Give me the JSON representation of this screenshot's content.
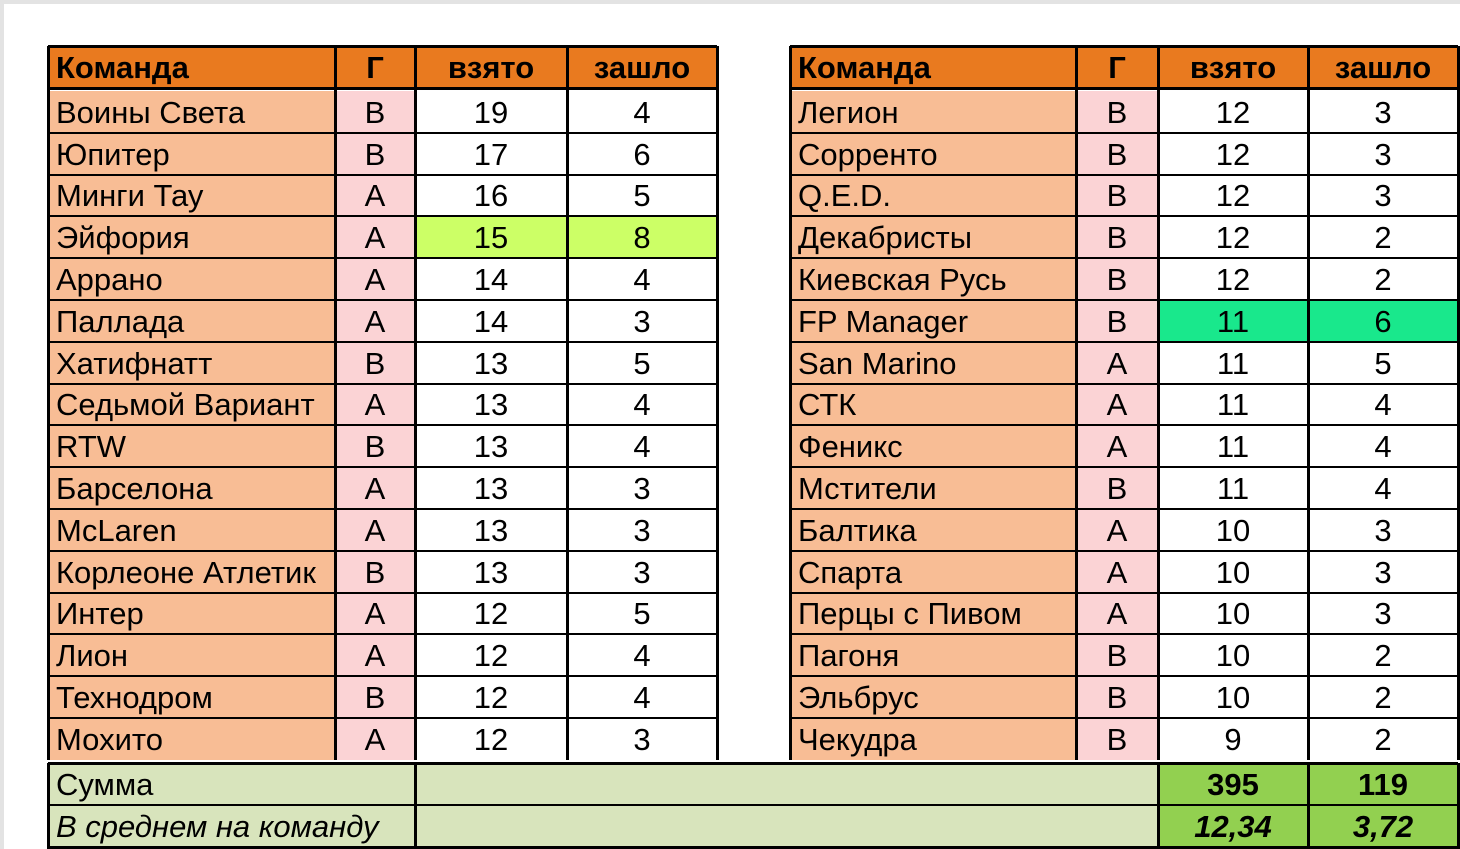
{
  "headers": {
    "team": "Команда",
    "group": "Г",
    "scored": "взято",
    "conceded": "зашло"
  },
  "left_rows": [
    {
      "team": "Воины Света",
      "group": "B",
      "scored": "19",
      "conceded": "4",
      "hl": ""
    },
    {
      "team": "Юпитер",
      "group": "B",
      "scored": "17",
      "conceded": "6",
      "hl": ""
    },
    {
      "team": "Минги Тау",
      "group": "A",
      "scored": "16",
      "conceded": "5",
      "hl": ""
    },
    {
      "team": "Эйфория",
      "group": "A",
      "scored": "15",
      "conceded": "8",
      "hl": "lime"
    },
    {
      "team": "Аррано",
      "group": "A",
      "scored": "14",
      "conceded": "4",
      "hl": ""
    },
    {
      "team": "Паллада",
      "group": "A",
      "scored": "14",
      "conceded": "3",
      "hl": ""
    },
    {
      "team": "Хатифнатт",
      "group": "B",
      "scored": "13",
      "conceded": "5",
      "hl": ""
    },
    {
      "team": "Седьмой Вариант",
      "group": "A",
      "scored": "13",
      "conceded": "4",
      "hl": ""
    },
    {
      "team": "RTW",
      "group": "B",
      "scored": "13",
      "conceded": "4",
      "hl": ""
    },
    {
      "team": "Барселона",
      "group": "A",
      "scored": "13",
      "conceded": "3",
      "hl": ""
    },
    {
      "team": "McLaren",
      "group": "A",
      "scored": "13",
      "conceded": "3",
      "hl": ""
    },
    {
      "team": "Корлеоне Атлетик",
      "group": "B",
      "scored": "13",
      "conceded": "3",
      "hl": ""
    },
    {
      "team": "Интер",
      "group": "A",
      "scored": "12",
      "conceded": "5",
      "hl": ""
    },
    {
      "team": "Лион",
      "group": "A",
      "scored": "12",
      "conceded": "4",
      "hl": ""
    },
    {
      "team": "Технодром",
      "group": "B",
      "scored": "12",
      "conceded": "4",
      "hl": ""
    },
    {
      "team": "Мохито",
      "group": "A",
      "scored": "12",
      "conceded": "3",
      "hl": ""
    }
  ],
  "right_rows": [
    {
      "team": "Легион",
      "group": "B",
      "scored": "12",
      "conceded": "3",
      "hl": ""
    },
    {
      "team": "Сорренто",
      "group": "B",
      "scored": "12",
      "conceded": "3",
      "hl": ""
    },
    {
      "team": "Q.E.D.",
      "group": "B",
      "scored": "12",
      "conceded": "3",
      "hl": ""
    },
    {
      "team": "Декабристы",
      "group": "B",
      "scored": "12",
      "conceded": "2",
      "hl": ""
    },
    {
      "team": "Киевская Русь",
      "group": "B",
      "scored": "12",
      "conceded": "2",
      "hl": ""
    },
    {
      "team": "FP Manager",
      "group": "B",
      "scored": "11",
      "conceded": "6",
      "hl": "green"
    },
    {
      "team": "San Marino",
      "group": "A",
      "scored": "11",
      "conceded": "5",
      "hl": ""
    },
    {
      "team": "СТК",
      "group": "A",
      "scored": "11",
      "conceded": "4",
      "hl": ""
    },
    {
      "team": "Феникс",
      "group": "A",
      "scored": "11",
      "conceded": "4",
      "hl": ""
    },
    {
      "team": "Мстители",
      "group": "B",
      "scored": "11",
      "conceded": "4",
      "hl": ""
    },
    {
      "team": "Балтика",
      "group": "A",
      "scored": "10",
      "conceded": "3",
      "hl": ""
    },
    {
      "team": "Спарта",
      "group": "A",
      "scored": "10",
      "conceded": "3",
      "hl": ""
    },
    {
      "team": "Перцы с Пивом",
      "group": "A",
      "scored": "10",
      "conceded": "3",
      "hl": ""
    },
    {
      "team": "Пагоня",
      "group": "B",
      "scored": "10",
      "conceded": "2",
      "hl": ""
    },
    {
      "team": "Эльбрус",
      "group": "B",
      "scored": "10",
      "conceded": "2",
      "hl": ""
    },
    {
      "team": "Чекудра",
      "group": "B",
      "scored": "9",
      "conceded": "2",
      "hl": ""
    }
  ],
  "summary": {
    "sum_label": "Сумма",
    "sum_scored": "395",
    "sum_conceded": "119",
    "avg_label": "В среднем на команду",
    "avg_scored": "12,34",
    "avg_conceded": "3,72"
  },
  "colors": {
    "header": "#e97a1f",
    "team_cell": "#f8bd95",
    "group_cell": "#fbd3d5",
    "highlight_lime": "#ccff66",
    "highlight_green": "#19e88c",
    "summary_label": "#d8e4bc",
    "summary_value": "#92d050"
  }
}
